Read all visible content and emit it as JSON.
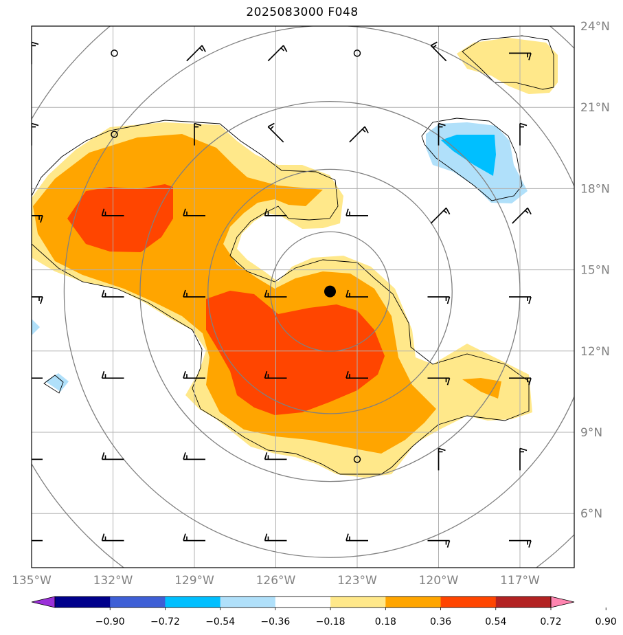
{
  "title": "2025083000 F048",
  "map": {
    "lon_range": [
      -135,
      -115
    ],
    "lat_range": [
      4,
      24
    ],
    "lat_labels": [
      "24°N",
      "21°N",
      "18°N",
      "15°N",
      "12°N",
      "9°N",
      "6°N"
    ],
    "lat_values": [
      24,
      21,
      18,
      15,
      12,
      9,
      6
    ],
    "lon_labels": [
      "135°W",
      "132°W",
      "129°W",
      "126°W",
      "123°W",
      "120°W",
      "117°W"
    ],
    "lon_values": [
      -135,
      -132,
      -129,
      -126,
      -123,
      -120,
      -117
    ],
    "center_marker": {
      "lon": -124.0,
      "lat": 14.2
    },
    "range_rings_deg": [
      2.2,
      4.5,
      7.0,
      9.8,
      12.7
    ],
    "grid": true
  },
  "colorbar": {
    "ticks": [
      "−0.90",
      "−0.72",
      "−0.54",
      "−0.36",
      "−0.18",
      "0.18",
      "0.36",
      "0.54",
      "0.72",
      "0.90"
    ],
    "colors": [
      "#9b30d9",
      "#00008b",
      "#3e5fd6",
      "#00bfff",
      "#b0e0fa",
      "#ffffff",
      "#ffe88a",
      "#ffa500",
      "#ff4500",
      "#b22222",
      "#ff85b0"
    ]
  },
  "fill_colors": {
    "light_yellow": "#ffe88a",
    "orange": "#ffa500",
    "red_orange": "#ff4500",
    "light_blue": "#b0e0fa",
    "sky_blue": "#00bfff"
  },
  "wind_stations": [
    {
      "lon": -131.95,
      "lat": 23.0,
      "calm": true
    },
    {
      "lon": -129.0,
      "lat": 23.0,
      "barb": "ne"
    },
    {
      "lon": -126.0,
      "lat": 23.0,
      "barb": "ne"
    },
    {
      "lon": -123.0,
      "lat": 23.0,
      "calm": true
    },
    {
      "lon": -120.0,
      "lat": 23.0,
      "barb": "nw"
    },
    {
      "lon": -117.0,
      "lat": 23.0,
      "barb": "e"
    },
    {
      "lon": -131.95,
      "lat": 20.0,
      "calm": true
    },
    {
      "lon": -129.0,
      "lat": 20.0,
      "barb": "n"
    },
    {
      "lon": -126.0,
      "lat": 20.0,
      "barb": "nw"
    },
    {
      "lon": -123.0,
      "lat": 20.0,
      "barb": "ne"
    },
    {
      "lon": -120.0,
      "lat": 20.0,
      "barb": "n"
    },
    {
      "lon": -117.0,
      "lat": 20.0,
      "barb": "n"
    },
    {
      "lon": -132.0,
      "lat": 17.0,
      "barb": "w"
    },
    {
      "lon": -129.0,
      "lat": 17.0,
      "barb": "w"
    },
    {
      "lon": -126.0,
      "lat": 17.0,
      "barb": "w"
    },
    {
      "lon": -123.0,
      "lat": 17.0,
      "barb": "w"
    },
    {
      "lon": -120.0,
      "lat": 17.0,
      "barb": "ne"
    },
    {
      "lon": -117.0,
      "lat": 17.0,
      "barb": "ne"
    },
    {
      "lon": -132.0,
      "lat": 14.0,
      "barb": "w"
    },
    {
      "lon": -129.0,
      "lat": 14.0,
      "barb": "w"
    },
    {
      "lon": -126.0,
      "lat": 14.0,
      "barb": "w"
    },
    {
      "lon": -123.0,
      "lat": 14.0,
      "barb": "w"
    },
    {
      "lon": -120.0,
      "lat": 14.0,
      "barb": "e"
    },
    {
      "lon": -117.0,
      "lat": 14.0,
      "barb": "e"
    },
    {
      "lon": -132.0,
      "lat": 11.0,
      "barb": "w"
    },
    {
      "lon": -129.0,
      "lat": 11.0,
      "barb": "w"
    },
    {
      "lon": -126.0,
      "lat": 11.0,
      "barb": "w"
    },
    {
      "lon": -123.0,
      "lat": 11.0,
      "barb": "w"
    },
    {
      "lon": -120.0,
      "lat": 11.0,
      "barb": "e"
    },
    {
      "lon": -117.0,
      "lat": 11.0,
      "barb": "e"
    },
    {
      "lon": -132.0,
      "lat": 8.0,
      "barb": "w"
    },
    {
      "lon": -129.0,
      "lat": 8.0,
      "barb": "w"
    },
    {
      "lon": -126.0,
      "lat": 8.0,
      "barb": "w"
    },
    {
      "lon": -123.0,
      "lat": 8.0,
      "calm": true
    },
    {
      "lon": -120.0,
      "lat": 8.0,
      "barb": "n"
    },
    {
      "lon": -117.0,
      "lat": 8.0,
      "barb": "n"
    },
    {
      "lon": -135.0,
      "lat": 5.0,
      "barb": "w"
    },
    {
      "lon": -132.0,
      "lat": 5.0,
      "barb": "w"
    },
    {
      "lon": -129.0,
      "lat": 5.0,
      "barb": "w"
    },
    {
      "lon": -126.0,
      "lat": 5.0,
      "barb": "w"
    },
    {
      "lon": -123.0,
      "lat": 5.0,
      "barb": "w"
    },
    {
      "lon": -120.0,
      "lat": 5.0,
      "barb": "e"
    },
    {
      "lon": -117.0,
      "lat": 5.0,
      "barb": "e"
    },
    {
      "lon": -135.0,
      "lat": 23.0,
      "barb": "n"
    },
    {
      "lon": -135.0,
      "lat": 20.0,
      "barb": "n"
    },
    {
      "lon": -135.0,
      "lat": 17.0,
      "barb": "e"
    },
    {
      "lon": -135.0,
      "lat": 14.0,
      "barb": "e"
    },
    {
      "lon": -135.0,
      "lat": 11.0,
      "barb": "w"
    },
    {
      "lon": -135.0,
      "lat": 8.0,
      "barb": "w"
    }
  ]
}
